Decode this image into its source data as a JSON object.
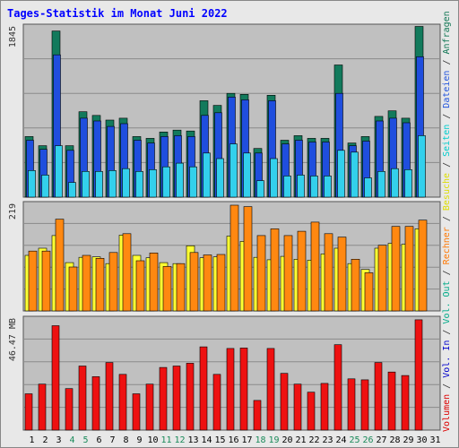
{
  "title": "Tages-Statistik im Monat Juni 2022",
  "chart_data": [
    {
      "type": "bar",
      "panel": "top",
      "y_max_label": "1845",
      "ylim": [
        0,
        1845
      ],
      "grid": true,
      "x": [
        "1",
        "2",
        "3",
        "4",
        "5",
        "6",
        "7",
        "8",
        "9",
        "10",
        "11",
        "12",
        "13",
        "14",
        "15",
        "16",
        "17",
        "18",
        "19",
        "20",
        "21",
        "22",
        "23",
        "24",
        "25",
        "26",
        "27",
        "28",
        "29",
        "30"
      ],
      "weekend_days": [
        "4",
        "5",
        "11",
        "12",
        "18",
        "19",
        "25",
        "26"
      ],
      "series": [
        {
          "name": "Anfragen",
          "color": "#127a5c",
          "values": [
            660,
            560,
            1810,
            560,
            930,
            890,
            840,
            860,
            660,
            640,
            710,
            730,
            720,
            1050,
            1000,
            1130,
            1120,
            530,
            1110,
            620,
            670,
            640,
            640,
            1440,
            590,
            660,
            880,
            940,
            860,
            1860
          ]
        },
        {
          "name": "Dateien",
          "color": "#1f4ede",
          "values": [
            620,
            520,
            1550,
            510,
            860,
            830,
            770,
            800,
            620,
            590,
            660,
            670,
            660,
            890,
            920,
            1090,
            1060,
            480,
            1050,
            580,
            620,
            600,
            600,
            1130,
            560,
            610,
            830,
            860,
            810,
            1530
          ]
        },
        {
          "name": "Seiten",
          "color": "#33d0ec",
          "values": [
            290,
            240,
            560,
            160,
            280,
            280,
            290,
            310,
            280,
            300,
            330,
            370,
            330,
            480,
            420,
            580,
            480,
            180,
            420,
            230,
            240,
            230,
            230,
            510,
            490,
            210,
            280,
            310,
            300,
            670
          ]
        }
      ]
    },
    {
      "type": "bar",
      "panel": "middle",
      "y_max_label": "219",
      "ylim": [
        0,
        219
      ],
      "grid": true,
      "x": [
        "1",
        "2",
        "3",
        "4",
        "5",
        "6",
        "7",
        "8",
        "9",
        "10",
        "11",
        "12",
        "13",
        "14",
        "15",
        "16",
        "17",
        "18",
        "19",
        "20",
        "21",
        "22",
        "23",
        "24",
        "25",
        "26",
        "27",
        "28",
        "29",
        "30"
      ],
      "series": [
        {
          "name": "Besuche",
          "color": "#ffff33",
          "values": [
            115,
            130,
            156,
            100,
            111,
            112,
            98,
            157,
            115,
            110,
            100,
            98,
            135,
            110,
            112,
            155,
            144,
            111,
            106,
            113,
            107,
            105,
            118,
            130,
            98,
            86,
            130,
            140,
            138,
            170
          ]
        },
        {
          "name": "Rechner",
          "color": "#ff8811",
          "values": [
            124,
            124,
            190,
            91,
            115,
            109,
            121,
            160,
            104,
            120,
            92,
            98,
            121,
            116,
            117,
            219,
            216,
            156,
            170,
            156,
            165,
            184,
            160,
            153,
            107,
            79,
            136,
            175,
            175,
            188
          ]
        }
      ]
    },
    {
      "type": "bar",
      "panel": "bottom",
      "y_max_label": "46.47 MB",
      "ylim": [
        0,
        46.47
      ],
      "grid": true,
      "x": [
        "1",
        "2",
        "3",
        "4",
        "5",
        "6",
        "7",
        "8",
        "9",
        "10",
        "11",
        "12",
        "13",
        "14",
        "15",
        "16",
        "17",
        "18",
        "19",
        "20",
        "21",
        "22",
        "23",
        "24",
        "25",
        "26",
        "27",
        "28",
        "29",
        "30"
      ],
      "series": [
        {
          "name": "Volumen",
          "color": "#ee1111",
          "values": [
            15.3,
            19.4,
            44.0,
            17.5,
            27.0,
            22.5,
            28.5,
            23.5,
            15.3,
            19.4,
            26.4,
            27.0,
            28.2,
            35.1,
            23.5,
            34.4,
            34.6,
            12.5,
            34.4,
            23.9,
            19.4,
            16.0,
            19.7,
            36.0,
            21.6,
            21.2,
            28.5,
            24.5,
            23.0,
            46.5
          ]
        }
      ]
    }
  ],
  "legend": {
    "top": [
      {
        "text": "Volumen",
        "color": "#dd0000"
      },
      {
        "text": " / ",
        "color": "#333333"
      },
      {
        "text": "Vol. In",
        "color": "#0000cc"
      },
      {
        "text": " / ",
        "color": "#333333"
      },
      {
        "text": "Vol. Out",
        "color": "#00aa88"
      },
      {
        "text": " / ",
        "color": "#333333"
      },
      {
        "text": "Rechner",
        "color": "#ff7700"
      },
      {
        "text": " / ",
        "color": "#333333"
      },
      {
        "text": "Besuche",
        "color": "#dddd00"
      },
      {
        "text": " / ",
        "color": "#333333"
      },
      {
        "text": "Seiten",
        "color": "#00cccc"
      },
      {
        "text": " / ",
        "color": "#333333"
      },
      {
        "text": "Dateien",
        "color": "#2255dd"
      },
      {
        "text": " / ",
        "color": "#333333"
      },
      {
        "text": "Anfragen",
        "color": "#117755"
      }
    ]
  },
  "x_axis_labels": [
    "1",
    "2",
    "3",
    "4",
    "5",
    "6",
    "7",
    "8",
    "9",
    "10",
    "11",
    "12",
    "13",
    "14",
    "15",
    "16",
    "17",
    "18",
    "19",
    "20",
    "21",
    "22",
    "23",
    "24",
    "25",
    "26",
    "27",
    "28",
    "29",
    "30",
    "31"
  ],
  "colors": {
    "weekday": "#000000",
    "weekend": "#1a8a5a",
    "panel_bg": "#c0c0c0",
    "outer_bg": "#e8e8e8"
  }
}
